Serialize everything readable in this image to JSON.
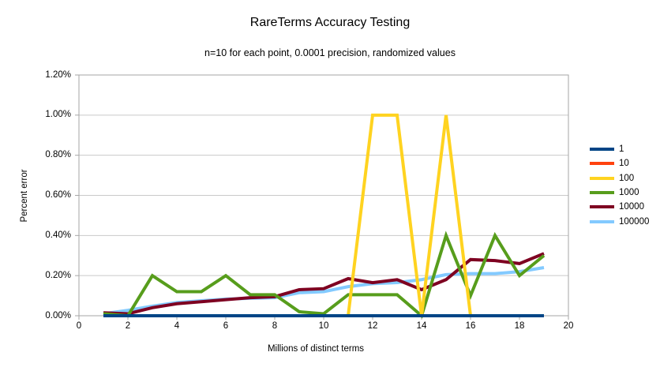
{
  "title": "RareTerms Accuracy Testing",
  "subtitle": "n=10 for each point, 0.0001 precision, randomized values",
  "chart_data": {
    "type": "line",
    "title": "RareTerms Accuracy Testing",
    "subtitle": "n=10 for each point, 0.0001 precision, randomized values",
    "xlabel": "Millions of distinct terms",
    "ylabel": "Percent error",
    "xlim": [
      0,
      20
    ],
    "ylim_percent": [
      0.0,
      1.2
    ],
    "grid": "horizontal",
    "legend_position": "right",
    "x_ticks": {
      "values": [
        0,
        2,
        4,
        6,
        8,
        10,
        12,
        14,
        16,
        18,
        20
      ],
      "labels": [
        "0",
        "2",
        "4",
        "6",
        "8",
        "10",
        "12",
        "14",
        "16",
        "18",
        "20"
      ]
    },
    "y_ticks": {
      "values_percent": [
        0.0,
        0.2,
        0.4,
        0.6,
        0.8,
        1.0,
        1.2
      ],
      "labels": [
        "0.00%",
        "0.20%",
        "0.40%",
        "0.60%",
        "0.80%",
        "1.00%",
        "1.20%"
      ]
    },
    "x": [
      1,
      2,
      3,
      4,
      5,
      6,
      7,
      8,
      9,
      10,
      11,
      12,
      13,
      14,
      15,
      16,
      17,
      18,
      19
    ],
    "series": [
      {
        "name": "1",
        "color": "#004586",
        "values_percent": [
          0,
          0,
          0,
          0,
          0,
          0,
          0,
          0,
          0,
          0,
          0,
          0,
          0,
          0,
          0,
          0,
          0,
          0,
          0
        ]
      },
      {
        "name": "10",
        "color": "#ff420e",
        "values_percent": [
          0,
          0,
          0,
          0,
          0,
          0,
          0,
          0,
          0,
          0,
          0,
          0,
          0,
          0,
          0,
          0,
          0,
          0,
          0
        ]
      },
      {
        "name": "100",
        "color": "#ffd320",
        "values_percent": [
          0,
          0,
          0,
          0,
          0,
          0,
          0,
          0,
          0,
          0,
          0,
          1.0,
          1.0,
          0,
          1.0,
          0,
          0,
          0,
          0
        ]
      },
      {
        "name": "1000",
        "color": "#579d1c",
        "values_percent": [
          0.01,
          0,
          0.2,
          0.12,
          0.12,
          0.2,
          0.105,
          0.105,
          0.02,
          0.01,
          0.105,
          0.105,
          0.105,
          0,
          0.4,
          0.1,
          0.4,
          0.2,
          0.3
        ]
      },
      {
        "name": "10000",
        "color": "#7e0021",
        "values_percent": [
          0.015,
          0.01,
          0.04,
          0.06,
          0.07,
          0.08,
          0.09,
          0.095,
          0.13,
          0.135,
          0.185,
          0.165,
          0.18,
          0.13,
          0.18,
          0.28,
          0.275,
          0.26,
          0.31
        ]
      },
      {
        "name": "100000",
        "color": "#83caff",
        "values_percent": [
          0.01,
          0.027,
          0.048,
          0.066,
          0.075,
          0.083,
          0.087,
          0.09,
          0.115,
          0.12,
          0.145,
          0.16,
          0.165,
          0.18,
          0.205,
          0.21,
          0.21,
          0.22,
          0.24
        ]
      }
    ],
    "draw_order": [
      "10",
      "100000",
      "10000",
      "1000",
      "100",
      "1"
    ],
    "colors": {
      "background": "#ffffff",
      "plot_border": "#a6a6a6",
      "gridline": "#c9c9c9",
      "text": "#000000"
    }
  }
}
